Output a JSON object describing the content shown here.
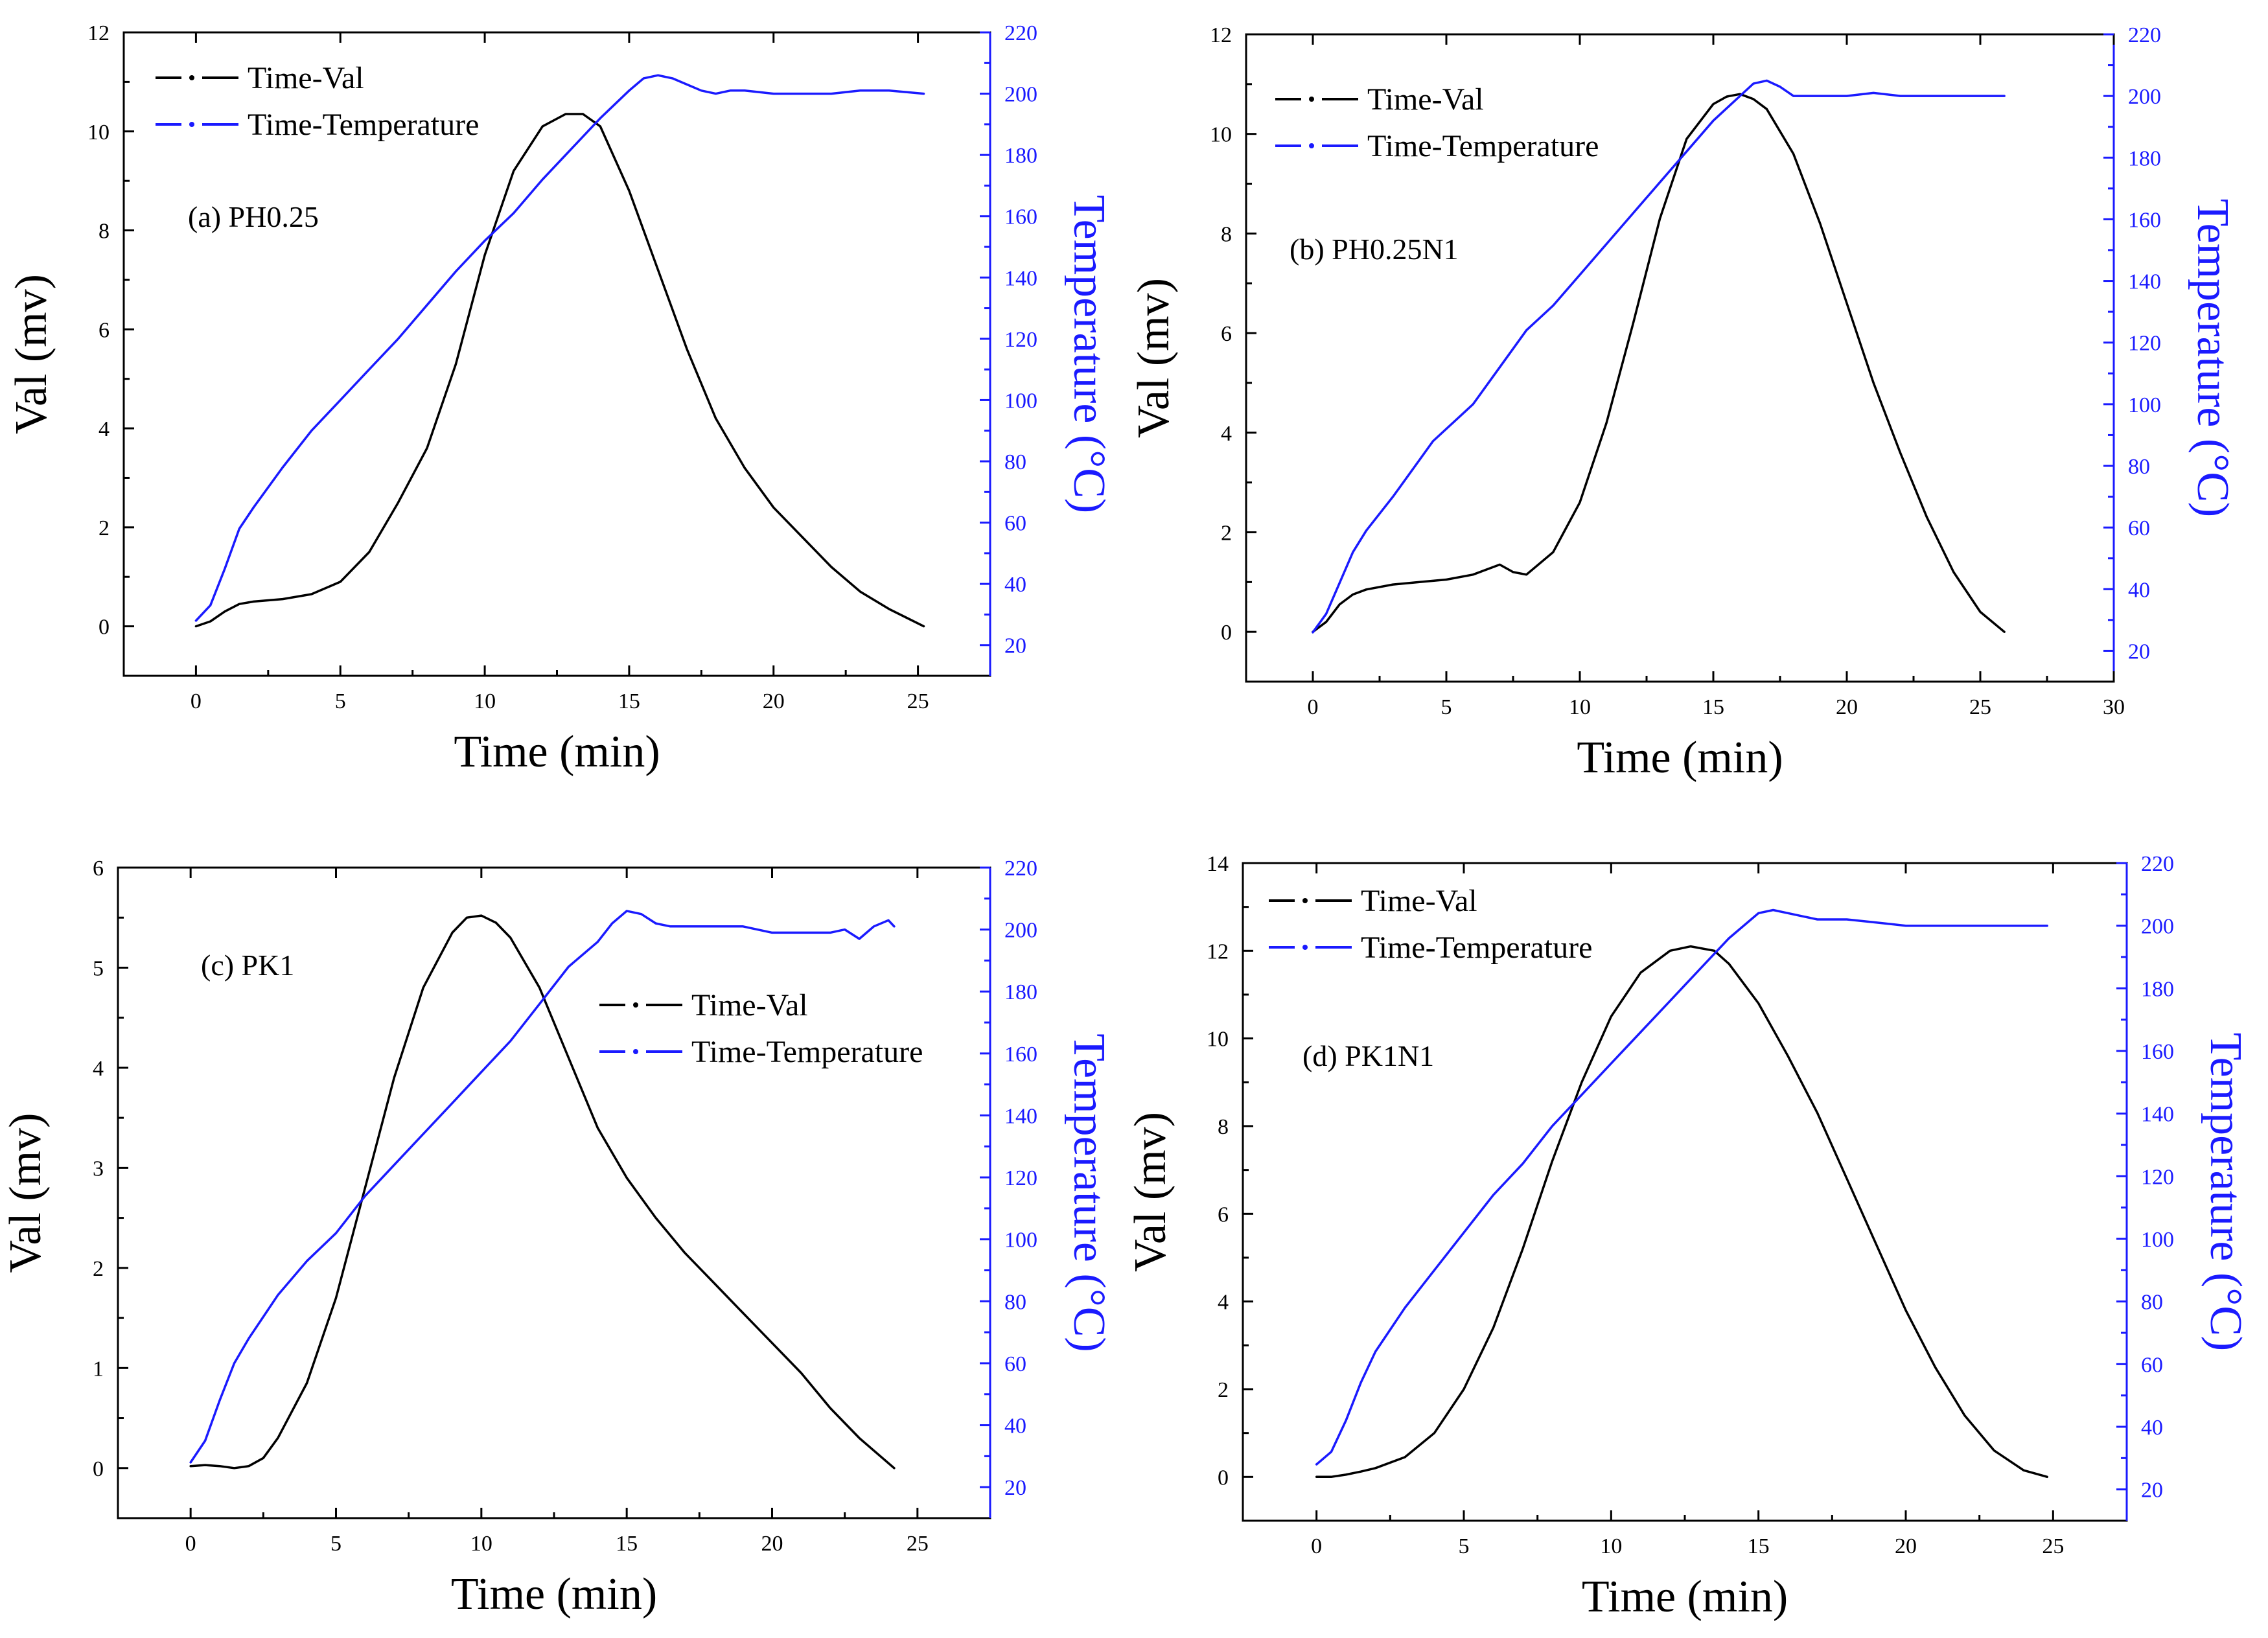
{
  "chart_data": [
    {
      "type": "line",
      "annotation": "(a) PH0.25",
      "xlabel": "Time (min)",
      "ylabel": "Val (mv)",
      "y2label": "Temperature (°C)",
      "xlim": [
        -2.5,
        27.5
      ],
      "ylim": [
        -1,
        12
      ],
      "y2lim": [
        10,
        220
      ],
      "xticks": [
        0,
        5,
        10,
        15,
        20,
        25
      ],
      "yticks": [
        0,
        2,
        4,
        6,
        8,
        10,
        12
      ],
      "y2ticks": [
        20,
        40,
        60,
        80,
        100,
        120,
        140,
        160,
        180,
        200,
        220
      ],
      "legend": {
        "position": "top-left",
        "entries": [
          "Time-Val",
          "Time-Temperature"
        ]
      },
      "series": [
        {
          "name": "Time-Val",
          "axis": "left",
          "color": "#000000",
          "x": [
            0,
            0.5,
            1,
            1.5,
            2,
            3,
            4,
            5,
            6,
            7,
            8,
            9,
            10,
            11,
            12,
            12.8,
            13.4,
            14,
            15,
            16,
            17,
            18,
            19,
            20,
            21,
            22,
            23,
            24,
            25.2
          ],
          "y": [
            0,
            0.1,
            0.3,
            0.45,
            0.5,
            0.55,
            0.65,
            0.9,
            1.5,
            2.5,
            3.6,
            5.3,
            7.5,
            9.2,
            10.1,
            10.35,
            10.35,
            10.1,
            8.8,
            7.2,
            5.6,
            4.2,
            3.2,
            2.4,
            1.8,
            1.2,
            0.7,
            0.35,
            0
          ]
        },
        {
          "name": "Time-Temperature",
          "axis": "right",
          "color": "#1a1aff",
          "x": [
            0,
            0.5,
            1,
            1.5,
            2,
            3,
            4,
            5,
            6,
            7,
            8,
            9,
            10,
            11,
            12,
            13,
            14,
            15,
            15.5,
            16,
            16.5,
            17,
            17.5,
            18,
            18.5,
            19,
            20,
            21,
            22,
            23,
            24,
            25.2
          ],
          "y": [
            28,
            33,
            45,
            58,
            65,
            78,
            90,
            100,
            110,
            120,
            131,
            142,
            152,
            161,
            172,
            182,
            192,
            201,
            205,
            206,
            205,
            203,
            201,
            200,
            201,
            201,
            200,
            200,
            200,
            201,
            201,
            200
          ]
        }
      ]
    },
    {
      "type": "line",
      "annotation": "(b) PH0.25N1",
      "xlabel": "Time (min)",
      "ylabel": "Val (mv)",
      "y2label": "Temperature (°C)",
      "xlim": [
        -2.5,
        30
      ],
      "ylim": [
        -1,
        12
      ],
      "y2lim": [
        10,
        220
      ],
      "xticks": [
        0,
        5,
        10,
        15,
        20,
        25,
        30
      ],
      "yticks": [
        0,
        2,
        4,
        6,
        8,
        10,
        12
      ],
      "y2ticks": [
        20,
        40,
        60,
        80,
        100,
        120,
        140,
        160,
        180,
        200,
        220
      ],
      "legend": {
        "position": "top-left",
        "entries": [
          "Time-Val",
          "Time-Temperature"
        ]
      },
      "series": [
        {
          "name": "Time-Val",
          "axis": "left",
          "color": "#000000",
          "x": [
            0,
            0.5,
            1,
            1.5,
            2,
            3,
            4,
            5,
            6,
            7,
            7.5,
            8,
            9,
            10,
            11,
            12,
            13,
            14,
            15,
            15.5,
            16,
            16.5,
            17,
            18,
            19,
            20,
            21,
            22,
            23,
            24,
            25,
            25.9
          ],
          "y": [
            0,
            0.2,
            0.55,
            0.75,
            0.85,
            0.95,
            1.0,
            1.05,
            1.15,
            1.35,
            1.2,
            1.15,
            1.6,
            2.6,
            4.2,
            6.2,
            8.3,
            9.9,
            10.6,
            10.75,
            10.8,
            10.7,
            10.5,
            9.6,
            8.2,
            6.6,
            5.0,
            3.6,
            2.3,
            1.2,
            0.4,
            0
          ]
        },
        {
          "name": "Time-Temperature",
          "axis": "right",
          "color": "#1a1aff",
          "x": [
            0,
            0.5,
            1,
            1.5,
            2,
            3,
            4,
            4.5,
            5,
            6,
            7,
            8,
            9,
            10,
            11,
            12,
            13,
            14,
            15,
            16,
            16.5,
            17,
            17.5,
            18,
            19,
            20,
            21,
            22,
            23,
            24,
            25,
            25.9
          ],
          "y": [
            26,
            32,
            42,
            52,
            59,
            70,
            82,
            88,
            92,
            100,
            112,
            124,
            132,
            142,
            152,
            162,
            172,
            182,
            192,
            200,
            204,
            205,
            203,
            200,
            200,
            200,
            201,
            200,
            200,
            200,
            200,
            200
          ]
        }
      ]
    },
    {
      "type": "line",
      "annotation": "(c) PK1",
      "xlabel": "Time (min)",
      "ylabel": "Val (mv)",
      "y2label": "Temperature (°C)",
      "xlim": [
        -2.5,
        27.5
      ],
      "ylim": [
        -0.5,
        6
      ],
      "y2lim": [
        10,
        220
      ],
      "xticks": [
        0,
        5,
        10,
        15,
        20,
        25
      ],
      "yticks": [
        0,
        1,
        2,
        3,
        4,
        5,
        6
      ],
      "y2ticks": [
        20,
        40,
        60,
        80,
        100,
        120,
        140,
        160,
        180,
        200,
        220
      ],
      "legend": {
        "position": "center-right",
        "entries": [
          "Time-Val",
          "Time-Temperature"
        ]
      },
      "series": [
        {
          "name": "Time-Val",
          "axis": "left",
          "color": "#000000",
          "x": [
            0,
            0.5,
            1,
            1.5,
            2,
            2.5,
            3,
            4,
            5,
            6,
            7,
            8,
            9,
            9.5,
            10,
            10.5,
            11,
            12,
            13,
            14,
            15,
            16,
            17,
            18,
            19,
            20,
            21,
            22,
            23,
            24.2
          ],
          "y": [
            0.02,
            0.03,
            0.02,
            0.0,
            0.02,
            0.1,
            0.3,
            0.85,
            1.7,
            2.8,
            3.9,
            4.8,
            5.35,
            5.5,
            5.52,
            5.45,
            5.3,
            4.8,
            4.1,
            3.4,
            2.9,
            2.5,
            2.15,
            1.85,
            1.55,
            1.25,
            0.95,
            0.6,
            0.3,
            0
          ]
        },
        {
          "name": "Time-Temperature",
          "axis": "right",
          "color": "#1a1aff",
          "x": [
            0,
            0.5,
            1,
            1.5,
            2,
            3,
            4,
            5,
            6,
            7,
            8,
            9,
            10,
            11,
            12,
            13,
            14,
            14.5,
            15,
            15.5,
            16,
            16.5,
            17,
            18,
            19,
            20,
            21,
            22,
            22.5,
            23,
            23.5,
            24,
            24.2
          ],
          "y": [
            28,
            35,
            48,
            60,
            68,
            82,
            93,
            102,
            114,
            124,
            134,
            144,
            154,
            164,
            176,
            188,
            196,
            202,
            206,
            205,
            202,
            201,
            201,
            201,
            201,
            199,
            199,
            199,
            200,
            197,
            201,
            203,
            201
          ]
        }
      ]
    },
    {
      "type": "line",
      "annotation": "(d) PK1N1",
      "xlabel": "Time (min)",
      "ylabel": "Val (mv)",
      "y2label": "Temperature (°C)",
      "xlim": [
        -2.5,
        27.5
      ],
      "ylim": [
        -1,
        14
      ],
      "y2lim": [
        10,
        220
      ],
      "xticks": [
        0,
        5,
        10,
        15,
        20,
        25
      ],
      "yticks": [
        0,
        2,
        4,
        6,
        8,
        10,
        12,
        14
      ],
      "y2ticks": [
        20,
        40,
        60,
        80,
        100,
        120,
        140,
        160,
        180,
        200,
        220
      ],
      "legend": {
        "position": "top-left",
        "entries": [
          "Time-Val",
          "Time-Temperature"
        ]
      },
      "series": [
        {
          "name": "Time-Val",
          "axis": "left",
          "color": "#000000",
          "x": [
            0,
            0.5,
            1,
            1.5,
            2,
            3,
            4,
            5,
            6,
            7,
            8,
            9,
            10,
            11,
            12,
            12.7,
            13.5,
            14,
            15,
            16,
            17,
            18,
            19,
            20,
            21,
            22,
            23,
            24,
            24.8
          ],
          "y": [
            0,
            0,
            0.05,
            0.12,
            0.2,
            0.45,
            1.0,
            2.0,
            3.4,
            5.2,
            7.2,
            9.0,
            10.5,
            11.5,
            12.0,
            12.1,
            12.0,
            11.7,
            10.8,
            9.6,
            8.3,
            6.8,
            5.3,
            3.8,
            2.5,
            1.4,
            0.6,
            0.15,
            0
          ]
        },
        {
          "name": "Time-Temperature",
          "axis": "right",
          "color": "#1a1aff",
          "x": [
            0,
            0.5,
            1,
            1.5,
            2,
            3,
            4,
            5,
            6,
            7,
            8,
            9,
            10,
            11,
            12,
            13,
            14,
            15,
            15.5,
            16,
            16.5,
            17,
            18,
            19,
            20,
            21,
            22,
            23,
            24,
            24.8
          ],
          "y": [
            28,
            32,
            42,
            54,
            64,
            78,
            90,
            102,
            114,
            124,
            136,
            146,
            156,
            166,
            176,
            186,
            196,
            204,
            205,
            204,
            203,
            202,
            202,
            201,
            200,
            200,
            200,
            200,
            200,
            200
          ]
        }
      ]
    }
  ]
}
